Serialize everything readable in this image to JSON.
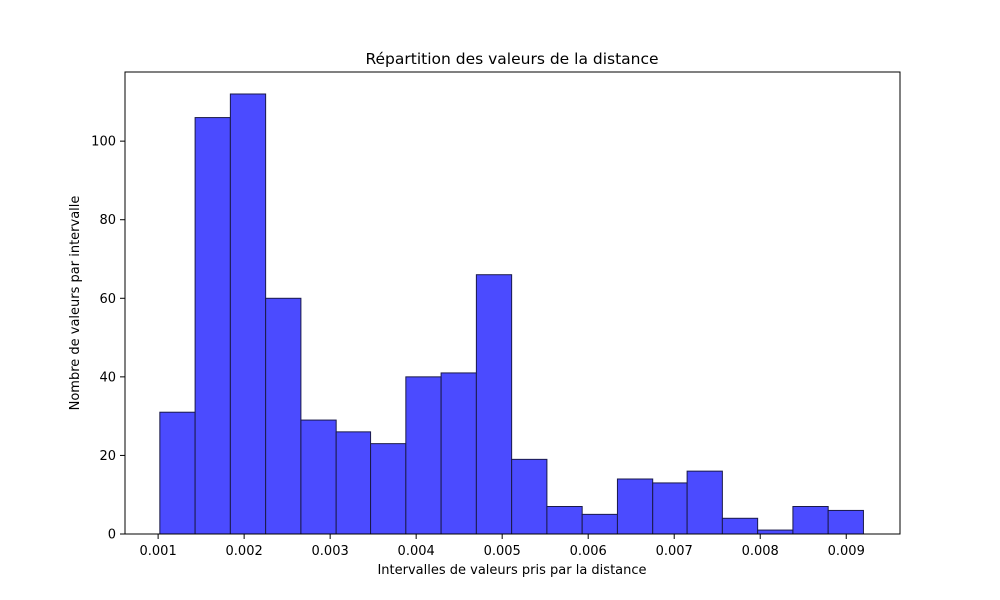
{
  "chart_data": {
    "type": "bar",
    "title": "Répartition des valeurs de la distance",
    "xlabel": "Intervalles de valeurs pris par la distance",
    "ylabel": "Nombre de valeurs par intervalle",
    "bin_edges": [
      0.00102,
      0.00143,
      0.00184,
      0.00225,
      0.00266,
      0.00307,
      0.00347,
      0.00388,
      0.00429,
      0.0047,
      0.00511,
      0.00552,
      0.00593,
      0.00634,
      0.00675,
      0.00715,
      0.00756,
      0.00797,
      0.00838,
      0.00879,
      0.0092
    ],
    "values": [
      31,
      106,
      112,
      60,
      29,
      26,
      23,
      40,
      41,
      66,
      19,
      7,
      5,
      14,
      13,
      16,
      4,
      1,
      7,
      6
    ],
    "xlim": [
      0.000615,
      0.009625
    ],
    "ylim": [
      0,
      117.6
    ],
    "x_ticks": [
      0.001,
      0.002,
      0.003,
      0.004,
      0.005,
      0.006,
      0.007,
      0.008,
      0.009
    ],
    "x_tick_labels": [
      "0.001",
      "0.002",
      "0.003",
      "0.004",
      "0.005",
      "0.006",
      "0.007",
      "0.008",
      "0.009"
    ],
    "y_ticks": [
      0,
      20,
      40,
      60,
      80,
      100
    ],
    "y_tick_labels": [
      "0",
      "20",
      "40",
      "60",
      "80",
      "100"
    ],
    "grid": false,
    "colors": {
      "bar_fill": "#4b4bff",
      "bar_edge": "#1a1a4a"
    }
  }
}
